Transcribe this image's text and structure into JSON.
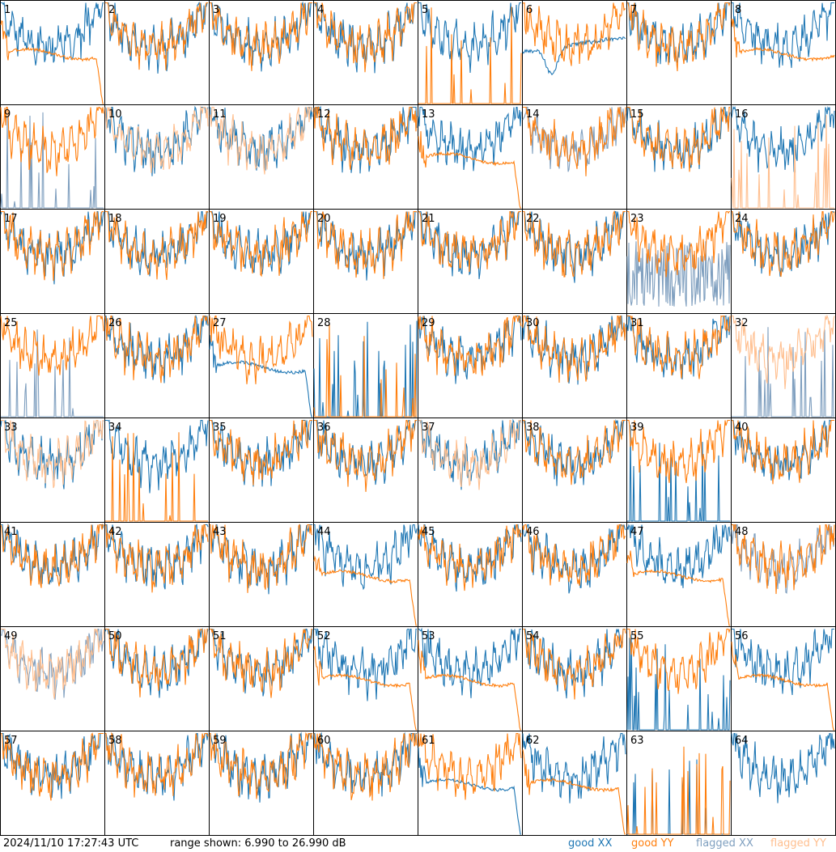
{
  "chart_data": {
    "type": "line",
    "layout": "8x8 small multiples",
    "series_legend": [
      {
        "name": "good XX",
        "color": "#1f77b4"
      },
      {
        "name": "good YY",
        "color": "#ff7f0e"
      },
      {
        "name": "flagged XX",
        "color": "#7f9fbf"
      },
      {
        "name": "flagged YY",
        "color": "#ffbf8f"
      }
    ],
    "y_range_db": [
      6.99,
      26.99
    ],
    "panels": [
      {
        "id": "1",
        "xx": "good",
        "yy": "good",
        "yy_shape": "rolloff"
      },
      {
        "id": "2",
        "xx": "good",
        "yy": "good"
      },
      {
        "id": "3",
        "xx": "good",
        "yy": "good"
      },
      {
        "id": "4",
        "xx": "good",
        "yy": "good"
      },
      {
        "id": "5",
        "xx": "good",
        "yy": "good",
        "yy_shape": "spikes"
      },
      {
        "id": "6",
        "xx": "good",
        "yy": "good",
        "xx_shape": "dip"
      },
      {
        "id": "7",
        "xx": "good",
        "yy": "good"
      },
      {
        "id": "8",
        "xx": "good",
        "yy": "good",
        "yy_shape": "flat"
      },
      {
        "id": "9",
        "xx": "flagged",
        "yy": "good",
        "xx_shape": "spikes"
      },
      {
        "id": "10",
        "xx": "good",
        "yy": "flagged"
      },
      {
        "id": "11",
        "xx": "good",
        "yy": "flagged"
      },
      {
        "id": "12",
        "xx": "good",
        "yy": "good"
      },
      {
        "id": "13",
        "xx": "good",
        "yy": "good",
        "yy_shape": "rolloff"
      },
      {
        "id": "14",
        "xx": "flagged",
        "yy": "good"
      },
      {
        "id": "15",
        "xx": "good",
        "yy": "good"
      },
      {
        "id": "16",
        "xx": "good",
        "yy": "flagged",
        "yy_shape": "spikes"
      },
      {
        "id": "17",
        "xx": "good",
        "yy": "good"
      },
      {
        "id": "18",
        "xx": "good",
        "yy": "good"
      },
      {
        "id": "19",
        "xx": "good",
        "yy": "good"
      },
      {
        "id": "20",
        "xx": "good",
        "yy": "good"
      },
      {
        "id": "21",
        "xx": "good",
        "yy": "good"
      },
      {
        "id": "22",
        "xx": "good",
        "yy": "good"
      },
      {
        "id": "23",
        "xx": "flagged",
        "yy": "good",
        "xx_shape": "noisy"
      },
      {
        "id": "24",
        "xx": "good",
        "yy": "good"
      },
      {
        "id": "25",
        "xx": "flagged",
        "yy": "good",
        "xx_shape": "spikes"
      },
      {
        "id": "26",
        "xx": "good",
        "yy": "good"
      },
      {
        "id": "27",
        "xx": "good",
        "yy": "good",
        "xx_shape": "rolloff"
      },
      {
        "id": "28",
        "xx": "good",
        "yy": "good",
        "xx_shape": "spikes",
        "yy_shape": "spikes"
      },
      {
        "id": "29",
        "xx": "good",
        "yy": "good"
      },
      {
        "id": "30",
        "xx": "good",
        "yy": "good"
      },
      {
        "id": "31",
        "xx": "good",
        "yy": "good"
      },
      {
        "id": "32",
        "xx": "flagged",
        "yy": "flagged",
        "xx_shape": "spikes"
      },
      {
        "id": "33",
        "xx": "good",
        "yy": "flagged"
      },
      {
        "id": "34",
        "xx": "good",
        "yy": "good",
        "yy_shape": "spikes"
      },
      {
        "id": "35",
        "xx": "good",
        "yy": "good"
      },
      {
        "id": "36",
        "xx": "good",
        "yy": "good"
      },
      {
        "id": "37",
        "xx": "good",
        "yy": "flagged"
      },
      {
        "id": "38",
        "xx": "good",
        "yy": "good"
      },
      {
        "id": "39",
        "xx": "good",
        "yy": "good",
        "xx_shape": "spikes"
      },
      {
        "id": "40",
        "xx": "good",
        "yy": "good"
      },
      {
        "id": "41",
        "xx": "good",
        "yy": "good"
      },
      {
        "id": "42",
        "xx": "good",
        "yy": "good"
      },
      {
        "id": "43",
        "xx": "good",
        "yy": "good"
      },
      {
        "id": "44",
        "xx": "good",
        "yy": "good",
        "yy_shape": "rolloff"
      },
      {
        "id": "45",
        "xx": "good",
        "yy": "good"
      },
      {
        "id": "46",
        "xx": "good",
        "yy": "good"
      },
      {
        "id": "47",
        "xx": "good",
        "yy": "good",
        "yy_shape": "rolloff"
      },
      {
        "id": "48",
        "xx": "flagged",
        "yy": "good"
      },
      {
        "id": "49",
        "xx": "flagged",
        "yy": "flagged"
      },
      {
        "id": "50",
        "xx": "good",
        "yy": "good"
      },
      {
        "id": "51",
        "xx": "good",
        "yy": "good"
      },
      {
        "id": "52",
        "xx": "good",
        "yy": "good",
        "yy_shape": "rolloff"
      },
      {
        "id": "53",
        "xx": "good",
        "yy": "good",
        "yy_shape": "rolloff"
      },
      {
        "id": "54",
        "xx": "good",
        "yy": "good"
      },
      {
        "id": "55",
        "xx": "good",
        "yy": "good",
        "xx_shape": "spikes"
      },
      {
        "id": "56",
        "xx": "good",
        "yy": "good",
        "yy_shape": "rolloff"
      },
      {
        "id": "57",
        "xx": "good",
        "yy": "good"
      },
      {
        "id": "58",
        "xx": "good",
        "yy": "good"
      },
      {
        "id": "59",
        "xx": "good",
        "yy": "good"
      },
      {
        "id": "60",
        "xx": "good",
        "yy": "good"
      },
      {
        "id": "61",
        "xx": "good",
        "yy": "good",
        "xx_shape": "rolloff"
      },
      {
        "id": "62",
        "xx": "good",
        "yy": "good",
        "yy_shape": "rolloff"
      },
      {
        "id": "63",
        "xx": "good",
        "yy": "good",
        "xx_shape": "spikes",
        "yy_shape": "spikes"
      },
      {
        "id": "64",
        "xx": "good",
        "yy": "good",
        "yy_shape": "none"
      }
    ]
  },
  "footer": {
    "timestamp": "2024/11/10 17:27:43 UTC",
    "range_text": "range shown: 6.990 to 26.990 dB",
    "legend_good_xx": "good XX",
    "legend_good_yy": "good YY",
    "legend_flagged_xx": "flagged XX",
    "legend_flagged_yy": "flagged YY"
  },
  "colors": {
    "good_xx": "#1f77b4",
    "good_yy": "#ff7f0e",
    "flagged_xx": "#7f9fbf",
    "flagged_yy": "#ffbf8f"
  }
}
